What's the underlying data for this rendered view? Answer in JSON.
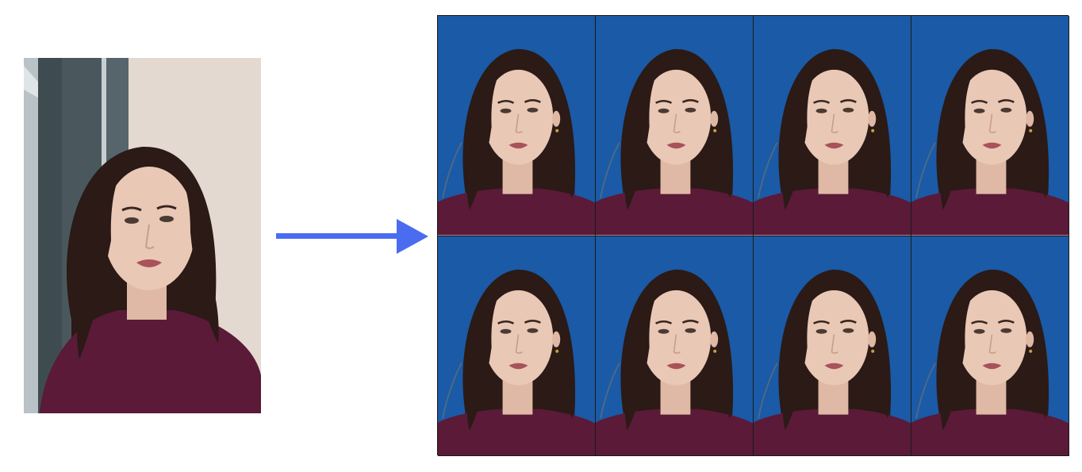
{
  "colors": {
    "arrow": "#4a6cf0",
    "passport_background": "#1a5aa6",
    "source_background_wall": "#e6dbd2",
    "source_background_window": "#5c6a70",
    "hair": "#2b1a16",
    "skin": "#e9c8b6",
    "sweater": "#5a1a38",
    "lips": "#a8525a",
    "grid_lines": "#1a1a1a"
  },
  "sheet": {
    "rows": 2,
    "columns": 4,
    "tile_count": 8
  },
  "icons": {
    "arrow": "right-arrow-icon"
  }
}
